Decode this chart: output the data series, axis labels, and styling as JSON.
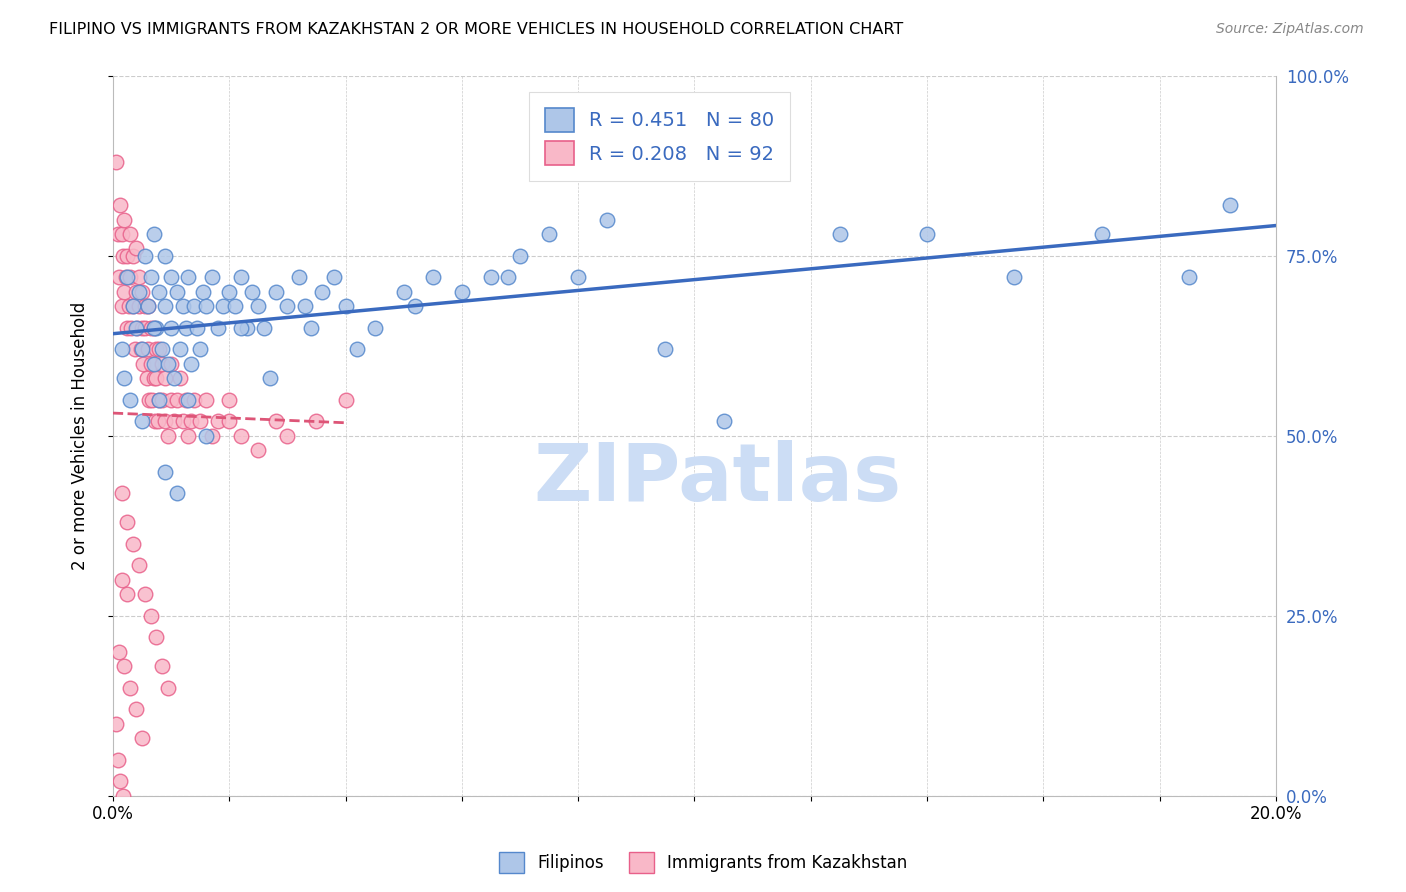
{
  "title": "FILIPINO VS IMMIGRANTS FROM KAZAKHSTAN 2 OR MORE VEHICLES IN HOUSEHOLD CORRELATION CHART",
  "source": "Source: ZipAtlas.com",
  "ylabel": "2 or more Vehicles in Household",
  "xlim": [
    0.0,
    20.0
  ],
  "ylim": [
    0.0,
    100.0
  ],
  "ytick_values": [
    0,
    25,
    50,
    75,
    100
  ],
  "xtick_values": [
    0,
    2,
    4,
    6,
    8,
    10,
    12,
    14,
    16,
    18,
    20
  ],
  "blue_R": 0.451,
  "blue_N": 80,
  "pink_R": 0.208,
  "pink_N": 92,
  "blue_color": "#aec6e8",
  "pink_color": "#f9b8c8",
  "blue_edge": "#5588cc",
  "pink_edge": "#e8608a",
  "trend_blue": "#3a6abf",
  "trend_pink": "#dd5577",
  "watermark": "ZIPatlas",
  "watermark_color": "#ccddf5",
  "legend_label_blue": "Filipinos",
  "legend_label_pink": "Immigrants from Kazakhstan",
  "filipinos_x": [
    0.15,
    0.2,
    0.25,
    0.3,
    0.35,
    0.4,
    0.45,
    0.5,
    0.55,
    0.6,
    0.65,
    0.7,
    0.7,
    0.75,
    0.8,
    0.8,
    0.85,
    0.9,
    0.9,
    0.95,
    1.0,
    1.0,
    1.05,
    1.1,
    1.15,
    1.2,
    1.25,
    1.3,
    1.35,
    1.4,
    1.45,
    1.5,
    1.55,
    1.6,
    1.7,
    1.8,
    1.9,
    2.0,
    2.1,
    2.2,
    2.3,
    2.4,
    2.5,
    2.6,
    2.8,
    3.0,
    3.2,
    3.4,
    3.6,
    3.8,
    4.0,
    4.5,
    5.0,
    5.5,
    6.0,
    6.5,
    7.0,
    7.5,
    8.0,
    9.5,
    10.5,
    12.5,
    14.0,
    15.5,
    17.0,
    18.5,
    19.2,
    0.5,
    0.7,
    0.9,
    1.1,
    1.3,
    1.6,
    2.2,
    2.7,
    3.3,
    4.2,
    5.2,
    6.8,
    8.5
  ],
  "filipinos_y": [
    62,
    58,
    72,
    55,
    68,
    65,
    70,
    62,
    75,
    68,
    72,
    60,
    78,
    65,
    55,
    70,
    62,
    68,
    75,
    60,
    72,
    65,
    58,
    70,
    62,
    68,
    65,
    72,
    60,
    68,
    65,
    62,
    70,
    68,
    72,
    65,
    68,
    70,
    68,
    72,
    65,
    70,
    68,
    65,
    70,
    68,
    72,
    65,
    70,
    72,
    68,
    65,
    70,
    72,
    70,
    72,
    75,
    78,
    72,
    62,
    52,
    78,
    78,
    72,
    78,
    72,
    82,
    52,
    65,
    45,
    42,
    55,
    50,
    65,
    58,
    68,
    62,
    68,
    72,
    80
  ],
  "kazakhstan_x": [
    0.05,
    0.08,
    0.1,
    0.12,
    0.15,
    0.15,
    0.18,
    0.2,
    0.2,
    0.22,
    0.25,
    0.25,
    0.28,
    0.3,
    0.3,
    0.32,
    0.35,
    0.35,
    0.38,
    0.4,
    0.4,
    0.42,
    0.45,
    0.45,
    0.48,
    0.5,
    0.5,
    0.52,
    0.55,
    0.55,
    0.58,
    0.6,
    0.6,
    0.62,
    0.65,
    0.65,
    0.68,
    0.7,
    0.7,
    0.72,
    0.75,
    0.75,
    0.78,
    0.8,
    0.8,
    0.85,
    0.85,
    0.9,
    0.9,
    0.95,
    1.0,
    1.0,
    1.05,
    1.1,
    1.15,
    1.2,
    1.25,
    1.3,
    1.35,
    1.4,
    1.5,
    1.6,
    1.7,
    1.8,
    2.0,
    2.0,
    2.2,
    2.5,
    2.8,
    3.0,
    3.5,
    4.0,
    0.15,
    0.25,
    0.35,
    0.45,
    0.55,
    0.65,
    0.75,
    0.85,
    0.95,
    0.1,
    0.2,
    0.3,
    0.4,
    0.5,
    0.15,
    0.25,
    0.05,
    0.08,
    0.12,
    0.18
  ],
  "kazakhstan_y": [
    88,
    78,
    72,
    82,
    68,
    78,
    75,
    70,
    80,
    72,
    65,
    75,
    68,
    72,
    78,
    65,
    68,
    75,
    62,
    70,
    76,
    65,
    68,
    72,
    62,
    65,
    70,
    60,
    65,
    68,
    58,
    62,
    68,
    55,
    60,
    65,
    55,
    58,
    65,
    52,
    58,
    62,
    52,
    55,
    62,
    55,
    60,
    52,
    58,
    50,
    55,
    60,
    52,
    55,
    58,
    52,
    55,
    50,
    52,
    55,
    52,
    55,
    50,
    52,
    52,
    55,
    50,
    48,
    52,
    50,
    52,
    55,
    42,
    38,
    35,
    32,
    28,
    25,
    22,
    18,
    15,
    20,
    18,
    15,
    12,
    8,
    30,
    28,
    10,
    5,
    2,
    0
  ]
}
